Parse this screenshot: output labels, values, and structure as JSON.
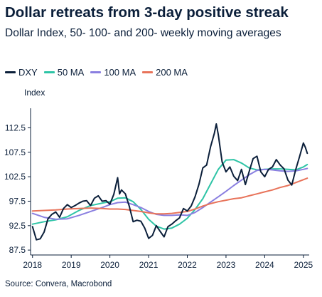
{
  "title": "Dollar retreats from 3-day positive streak",
  "subtitle": "Dollar Index, 50- 100- and 200- weekly moving averages",
  "source": "Source: Convera, Macrobond",
  "chart_data": {
    "type": "line",
    "ylabel": "Index",
    "ylim": [
      86.5,
      116.5
    ],
    "xlim": [
      2017.95,
      2025.15
    ],
    "yticks": [
      87.5,
      92.5,
      97.5,
      102.5,
      107.5,
      112.5
    ],
    "ytick_labels": [
      "87.5",
      "92.5",
      "97.5",
      "102.5",
      "107.5",
      "112.5"
    ],
    "xticks": [
      2018,
      2019,
      2020,
      2021,
      2022,
      2023,
      2024,
      2025
    ],
    "xtick_labels": [
      "2018",
      "2019",
      "2020",
      "2021",
      "2022",
      "2023",
      "2024",
      "2025"
    ],
    "grid": false,
    "legend_position": "top",
    "series": [
      {
        "name": "DXY",
        "color": "#0b1f3a",
        "points": [
          [
            2018.0,
            92.3
          ],
          [
            2018.1,
            89.6
          ],
          [
            2018.2,
            89.8
          ],
          [
            2018.3,
            91.2
          ],
          [
            2018.4,
            93.9
          ],
          [
            2018.5,
            94.8
          ],
          [
            2018.6,
            95.3
          ],
          [
            2018.7,
            94.2
          ],
          [
            2018.8,
            96.0
          ],
          [
            2018.9,
            96.8
          ],
          [
            2019.0,
            96.2
          ],
          [
            2019.1,
            96.6
          ],
          [
            2019.2,
            97.1
          ],
          [
            2019.3,
            97.5
          ],
          [
            2019.4,
            97.6
          ],
          [
            2019.5,
            96.6
          ],
          [
            2019.6,
            98.1
          ],
          [
            2019.7,
            98.6
          ],
          [
            2019.8,
            97.5
          ],
          [
            2019.9,
            97.6
          ],
          [
            2020.0,
            96.9
          ],
          [
            2020.1,
            98.9
          ],
          [
            2020.2,
            102.3
          ],
          [
            2020.25,
            99.0
          ],
          [
            2020.3,
            99.8
          ],
          [
            2020.4,
            99.0
          ],
          [
            2020.5,
            96.5
          ],
          [
            2020.6,
            93.3
          ],
          [
            2020.7,
            93.6
          ],
          [
            2020.8,
            93.4
          ],
          [
            2020.9,
            92.0
          ],
          [
            2021.0,
            89.9
          ],
          [
            2021.1,
            90.5
          ],
          [
            2021.2,
            92.5
          ],
          [
            2021.3,
            91.3
          ],
          [
            2021.4,
            90.2
          ],
          [
            2021.5,
            92.3
          ],
          [
            2021.6,
            92.8
          ],
          [
            2021.7,
            93.5
          ],
          [
            2021.8,
            94.1
          ],
          [
            2021.9,
            96.0
          ],
          [
            2022.0,
            95.5
          ],
          [
            2022.1,
            96.5
          ],
          [
            2022.2,
            98.4
          ],
          [
            2022.3,
            100.9
          ],
          [
            2022.4,
            104.3
          ],
          [
            2022.5,
            104.9
          ],
          [
            2022.6,
            108.6
          ],
          [
            2022.7,
            111.4
          ],
          [
            2022.75,
            113.3
          ],
          [
            2022.8,
            111.1
          ],
          [
            2022.9,
            105.5
          ],
          [
            2023.0,
            103.5
          ],
          [
            2023.1,
            104.5
          ],
          [
            2023.2,
            102.6
          ],
          [
            2023.3,
            101.7
          ],
          [
            2023.4,
            104.0
          ],
          [
            2023.5,
            100.9
          ],
          [
            2023.6,
            103.6
          ],
          [
            2023.7,
            106.2
          ],
          [
            2023.8,
            106.7
          ],
          [
            2023.9,
            103.5
          ],
          [
            2024.0,
            102.5
          ],
          [
            2024.1,
            104.0
          ],
          [
            2024.2,
            104.5
          ],
          [
            2024.3,
            106.0
          ],
          [
            2024.4,
            104.9
          ],
          [
            2024.5,
            104.1
          ],
          [
            2024.6,
            101.8
          ],
          [
            2024.7,
            100.8
          ],
          [
            2024.8,
            103.9
          ],
          [
            2024.9,
            106.6
          ],
          [
            2025.0,
            109.4
          ],
          [
            2025.05,
            108.5
          ],
          [
            2025.1,
            107.3
          ]
        ]
      },
      {
        "name": "50 MA",
        "color": "#2ec4a6",
        "points": [
          [
            2018.0,
            92.8
          ],
          [
            2018.3,
            93.3
          ],
          [
            2018.6,
            93.7
          ],
          [
            2018.9,
            94.3
          ],
          [
            2019.2,
            95.6
          ],
          [
            2019.5,
            96.6
          ],
          [
            2019.8,
            97.1
          ],
          [
            2020.0,
            97.4
          ],
          [
            2020.2,
            98.1
          ],
          [
            2020.4,
            98.2
          ],
          [
            2020.6,
            97.4
          ],
          [
            2020.8,
            95.8
          ],
          [
            2021.0,
            93.8
          ],
          [
            2021.2,
            92.4
          ],
          [
            2021.4,
            91.8
          ],
          [
            2021.6,
            92.0
          ],
          [
            2021.8,
            92.8
          ],
          [
            2022.0,
            94.0
          ],
          [
            2022.2,
            95.8
          ],
          [
            2022.4,
            98.0
          ],
          [
            2022.6,
            101.0
          ],
          [
            2022.8,
            104.0
          ],
          [
            2023.0,
            105.9
          ],
          [
            2023.2,
            106.0
          ],
          [
            2023.4,
            105.3
          ],
          [
            2023.6,
            104.3
          ],
          [
            2023.8,
            103.9
          ],
          [
            2024.0,
            104.0
          ],
          [
            2024.2,
            104.1
          ],
          [
            2024.4,
            104.1
          ],
          [
            2024.6,
            104.0
          ],
          [
            2024.8,
            103.9
          ],
          [
            2025.0,
            104.5
          ],
          [
            2025.1,
            105.0
          ]
        ]
      },
      {
        "name": "100 MA",
        "color": "#8a7fe0",
        "points": [
          [
            2018.0,
            95.0
          ],
          [
            2018.3,
            94.2
          ],
          [
            2018.6,
            93.8
          ],
          [
            2018.9,
            93.9
          ],
          [
            2019.2,
            94.6
          ],
          [
            2019.5,
            95.4
          ],
          [
            2019.8,
            96.2
          ],
          [
            2020.0,
            96.8
          ],
          [
            2020.2,
            97.2
          ],
          [
            2020.4,
            97.3
          ],
          [
            2020.6,
            96.8
          ],
          [
            2020.8,
            96.2
          ],
          [
            2021.0,
            95.4
          ],
          [
            2021.2,
            94.8
          ],
          [
            2021.4,
            94.6
          ],
          [
            2021.6,
            94.6
          ],
          [
            2021.8,
            94.7
          ],
          [
            2022.0,
            94.6
          ],
          [
            2022.2,
            95.2
          ],
          [
            2022.4,
            96.2
          ],
          [
            2022.6,
            97.3
          ],
          [
            2022.8,
            98.4
          ],
          [
            2023.0,
            99.5
          ],
          [
            2023.2,
            100.7
          ],
          [
            2023.4,
            101.8
          ],
          [
            2023.6,
            102.9
          ],
          [
            2023.8,
            103.8
          ],
          [
            2024.0,
            104.0
          ],
          [
            2024.2,
            103.9
          ],
          [
            2024.4,
            103.7
          ],
          [
            2024.6,
            103.6
          ],
          [
            2024.8,
            103.7
          ],
          [
            2025.0,
            104.0
          ],
          [
            2025.1,
            104.2
          ]
        ]
      },
      {
        "name": "200 MA",
        "color": "#e8735a",
        "points": [
          [
            2018.0,
            95.5
          ],
          [
            2018.3,
            95.6
          ],
          [
            2018.6,
            95.7
          ],
          [
            2018.9,
            95.9
          ],
          [
            2019.2,
            96.0
          ],
          [
            2019.5,
            96.1
          ],
          [
            2019.8,
            96.0
          ],
          [
            2020.0,
            95.9
          ],
          [
            2020.2,
            95.9
          ],
          [
            2020.4,
            95.8
          ],
          [
            2020.6,
            95.6
          ],
          [
            2020.8,
            95.4
          ],
          [
            2021.0,
            95.1
          ],
          [
            2021.2,
            94.9
          ],
          [
            2021.4,
            94.9
          ],
          [
            2021.6,
            95.0
          ],
          [
            2021.8,
            95.2
          ],
          [
            2022.0,
            95.4
          ],
          [
            2022.2,
            95.9
          ],
          [
            2022.4,
            96.5
          ],
          [
            2022.6,
            97.0
          ],
          [
            2022.8,
            97.4
          ],
          [
            2023.0,
            97.7
          ],
          [
            2023.2,
            98.0
          ],
          [
            2023.4,
            98.2
          ],
          [
            2023.6,
            98.6
          ],
          [
            2023.8,
            99.0
          ],
          [
            2024.0,
            99.4
          ],
          [
            2024.2,
            99.8
          ],
          [
            2024.4,
            100.3
          ],
          [
            2024.6,
            100.7
          ],
          [
            2024.8,
            101.3
          ],
          [
            2025.0,
            101.9
          ],
          [
            2025.1,
            102.2
          ]
        ]
      }
    ]
  }
}
